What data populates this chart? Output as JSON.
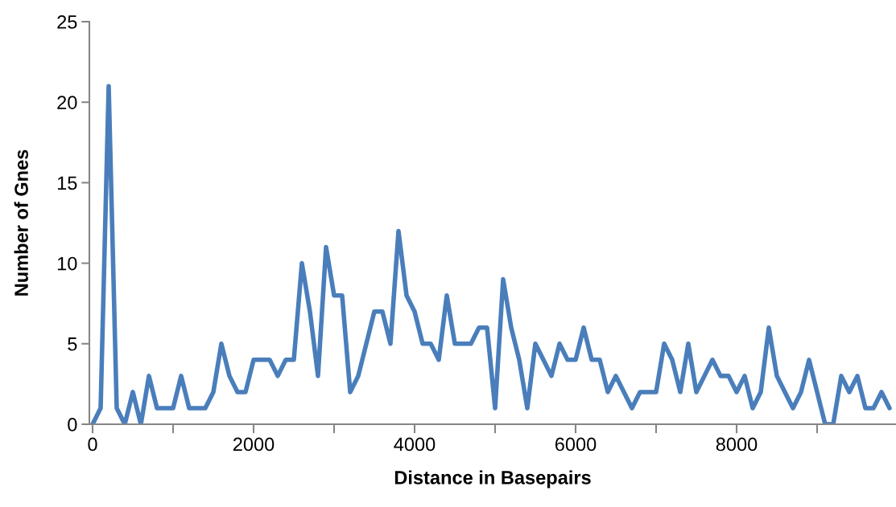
{
  "chart_data": {
    "type": "line",
    "xlabel": "Distance in Basepairs",
    "ylabel": "Number of Gnes",
    "x": [
      0,
      100,
      200,
      300,
      400,
      500,
      600,
      700,
      800,
      900,
      1000,
      1100,
      1200,
      1300,
      1400,
      1500,
      1600,
      1700,
      1800,
      1900,
      2000,
      2100,
      2200,
      2300,
      2400,
      2500,
      2600,
      2700,
      2800,
      2900,
      3000,
      3100,
      3200,
      3300,
      3400,
      3500,
      3600,
      3700,
      3800,
      3900,
      4000,
      4100,
      4200,
      4300,
      4400,
      4500,
      4600,
      4700,
      4800,
      4900,
      5000,
      5100,
      5200,
      5300,
      5400,
      5500,
      5600,
      5700,
      5800,
      5900,
      6000,
      6100,
      6200,
      6300,
      6400,
      6500,
      6600,
      6700,
      6800,
      6900,
      7000,
      7100,
      7200,
      7300,
      7400,
      7500,
      7600,
      7700,
      7800,
      7900,
      8000,
      8100,
      8200,
      8300,
      8400,
      8500,
      8600,
      8700,
      8800,
      8900,
      9000,
      9100,
      9200,
      9300,
      9400,
      9500,
      9600,
      9700,
      9800,
      9900
    ],
    "series": [
      {
        "color": "#4a7ebb",
        "values": [
          0,
          1,
          21,
          1,
          0,
          2,
          0,
          3,
          1,
          1,
          1,
          3,
          1,
          1,
          1,
          2,
          5,
          3,
          2,
          2,
          4,
          4,
          4,
          3,
          4,
          4,
          10,
          7,
          3,
          11,
          8,
          8,
          2,
          3,
          5,
          7,
          7,
          5,
          12,
          8,
          7,
          5,
          5,
          4,
          8,
          5,
          5,
          5,
          6,
          6,
          1,
          9,
          6,
          4,
          1,
          5,
          4,
          3,
          5,
          4,
          4,
          6,
          4,
          4,
          2,
          3,
          2,
          1,
          2,
          2,
          2,
          5,
          4,
          2,
          5,
          2,
          3,
          4,
          3,
          3,
          2,
          3,
          1,
          2,
          6,
          3,
          2,
          1,
          2,
          4,
          2,
          0,
          0,
          3,
          2,
          3,
          1,
          1,
          2,
          1
        ]
      }
    ],
    "xlim": [
      -40,
      9980
    ],
    "xticks": [
      0,
      {
        "value": 1000,
        "label": null
      },
      2000,
      {
        "value": 3000,
        "label": null
      },
      4000,
      {
        "value": 5000,
        "label": null
      },
      6000,
      {
        "value": 7000,
        "label": null
      },
      8000,
      {
        "value": 9000,
        "label": null
      }
    ],
    "ylim": [
      0,
      25
    ],
    "yticks": [
      0,
      5,
      10,
      15,
      20,
      25
    ],
    "grid": false,
    "marker": "none",
    "line_style": "solid"
  }
}
